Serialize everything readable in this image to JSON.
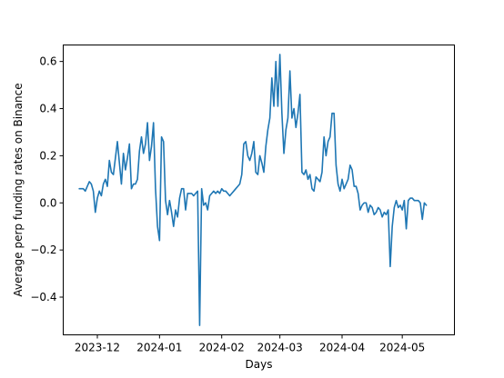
{
  "chart_data": {
    "type": "line",
    "title": "",
    "xlabel": "Days",
    "ylabel": "Average perp funding rates on Binance",
    "x_range": [
      "2023-11-14",
      "2024-05-27"
    ],
    "ylim": [
      -0.56,
      0.67
    ],
    "grid": false,
    "legend": null,
    "x_ticks": [
      {
        "date": "2023-12-01",
        "label": "2023-12"
      },
      {
        "date": "2024-01-01",
        "label": "2024-01"
      },
      {
        "date": "2024-02-01",
        "label": "2024-02"
      },
      {
        "date": "2024-03-01",
        "label": "2024-03"
      },
      {
        "date": "2024-04-01",
        "label": "2024-04"
      },
      {
        "date": "2024-05-01",
        "label": "2024-05"
      }
    ],
    "y_ticks": [
      {
        "value": 0.6,
        "label": "0.6"
      },
      {
        "value": 0.4,
        "label": "0.4"
      },
      {
        "value": 0.2,
        "label": "0.2"
      },
      {
        "value": 0.0,
        "label": "0.0"
      },
      {
        "value": -0.2,
        "label": "−0.2"
      },
      {
        "value": -0.4,
        "label": "−0.4"
      }
    ],
    "series": [
      {
        "color": "#1f77b4",
        "points": [
          [
            "2023-11-22",
            0.06
          ],
          [
            "2023-11-23",
            0.06
          ],
          [
            "2023-11-24",
            0.06
          ],
          [
            "2023-11-25",
            0.05
          ],
          [
            "2023-11-26",
            0.07
          ],
          [
            "2023-11-27",
            0.09
          ],
          [
            "2023-11-28",
            0.08
          ],
          [
            "2023-11-29",
            0.05
          ],
          [
            "2023-11-30",
            -0.04
          ],
          [
            "2023-12-01",
            0.02
          ],
          [
            "2023-12-02",
            0.05
          ],
          [
            "2023-12-03",
            0.03
          ],
          [
            "2023-12-04",
            0.08
          ],
          [
            "2023-12-05",
            0.1
          ],
          [
            "2023-12-06",
            0.07
          ],
          [
            "2023-12-07",
            0.18
          ],
          [
            "2023-12-08",
            0.13
          ],
          [
            "2023-12-09",
            0.12
          ],
          [
            "2023-12-10",
            0.19
          ],
          [
            "2023-12-11",
            0.26
          ],
          [
            "2023-12-12",
            0.17
          ],
          [
            "2023-12-13",
            0.08
          ],
          [
            "2023-12-14",
            0.21
          ],
          [
            "2023-12-15",
            0.14
          ],
          [
            "2023-12-16",
            0.19
          ],
          [
            "2023-12-17",
            0.25
          ],
          [
            "2023-12-18",
            0.06
          ],
          [
            "2023-12-19",
            0.08
          ],
          [
            "2023-12-20",
            0.08
          ],
          [
            "2023-12-21",
            0.1
          ],
          [
            "2023-12-22",
            0.22
          ],
          [
            "2023-12-23",
            0.28
          ],
          [
            "2023-12-24",
            0.21
          ],
          [
            "2023-12-25",
            0.25
          ],
          [
            "2023-12-26",
            0.34
          ],
          [
            "2023-12-27",
            0.18
          ],
          [
            "2023-12-28",
            0.24
          ],
          [
            "2023-12-29",
            0.34
          ],
          [
            "2023-12-30",
            0.06
          ],
          [
            "2023-12-31",
            -0.1
          ],
          [
            "2024-01-01",
            -0.16
          ],
          [
            "2024-01-02",
            0.28
          ],
          [
            "2024-01-03",
            0.26
          ],
          [
            "2024-01-04",
            0.01
          ],
          [
            "2024-01-05",
            -0.05
          ],
          [
            "2024-01-06",
            0.01
          ],
          [
            "2024-01-07",
            -0.04
          ],
          [
            "2024-01-08",
            -0.1
          ],
          [
            "2024-01-09",
            -0.03
          ],
          [
            "2024-01-10",
            -0.06
          ],
          [
            "2024-01-11",
            0.02
          ],
          [
            "2024-01-12",
            0.06
          ],
          [
            "2024-01-13",
            0.06
          ],
          [
            "2024-01-14",
            -0.03
          ],
          [
            "2024-01-15",
            0.04
          ],
          [
            "2024-01-16",
            0.04
          ],
          [
            "2024-01-17",
            0.04
          ],
          [
            "2024-01-18",
            0.03
          ],
          [
            "2024-01-19",
            0.04
          ],
          [
            "2024-01-20",
            0.05
          ],
          [
            "2024-01-21",
            -0.52
          ],
          [
            "2024-01-22",
            0.06
          ],
          [
            "2024-01-23",
            -0.01
          ],
          [
            "2024-01-24",
            0.0
          ],
          [
            "2024-01-25",
            -0.03
          ],
          [
            "2024-01-26",
            0.03
          ],
          [
            "2024-01-27",
            0.04
          ],
          [
            "2024-01-28",
            0.05
          ],
          [
            "2024-01-29",
            0.04
          ],
          [
            "2024-01-30",
            0.05
          ],
          [
            "2024-01-31",
            0.04
          ],
          [
            "2024-02-01",
            0.06
          ],
          [
            "2024-02-02",
            0.05
          ],
          [
            "2024-02-03",
            0.05
          ],
          [
            "2024-02-04",
            0.04
          ],
          [
            "2024-02-05",
            0.03
          ],
          [
            "2024-02-06",
            0.04
          ],
          [
            "2024-02-07",
            0.05
          ],
          [
            "2024-02-08",
            0.06
          ],
          [
            "2024-02-09",
            0.07
          ],
          [
            "2024-02-10",
            0.08
          ],
          [
            "2024-02-11",
            0.12
          ],
          [
            "2024-02-12",
            0.25
          ],
          [
            "2024-02-13",
            0.26
          ],
          [
            "2024-02-14",
            0.2
          ],
          [
            "2024-02-15",
            0.18
          ],
          [
            "2024-02-16",
            0.21
          ],
          [
            "2024-02-17",
            0.26
          ],
          [
            "2024-02-18",
            0.13
          ],
          [
            "2024-02-19",
            0.12
          ],
          [
            "2024-02-20",
            0.2
          ],
          [
            "2024-02-21",
            0.17
          ],
          [
            "2024-02-22",
            0.13
          ],
          [
            "2024-02-23",
            0.24
          ],
          [
            "2024-02-24",
            0.31
          ],
          [
            "2024-02-25",
            0.36
          ],
          [
            "2024-02-26",
            0.53
          ],
          [
            "2024-02-27",
            0.41
          ],
          [
            "2024-02-28",
            0.6
          ],
          [
            "2024-02-29",
            0.41
          ],
          [
            "2024-03-01",
            0.63
          ],
          [
            "2024-03-02",
            0.38
          ],
          [
            "2024-03-03",
            0.21
          ],
          [
            "2024-03-04",
            0.31
          ],
          [
            "2024-03-05",
            0.36
          ],
          [
            "2024-03-06",
            0.56
          ],
          [
            "2024-03-07",
            0.36
          ],
          [
            "2024-03-08",
            0.4
          ],
          [
            "2024-03-09",
            0.32
          ],
          [
            "2024-03-10",
            0.38
          ],
          [
            "2024-03-11",
            0.46
          ],
          [
            "2024-03-12",
            0.13
          ],
          [
            "2024-03-13",
            0.12
          ],
          [
            "2024-03-14",
            0.14
          ],
          [
            "2024-03-15",
            0.1
          ],
          [
            "2024-03-16",
            0.12
          ],
          [
            "2024-03-17",
            0.06
          ],
          [
            "2024-03-18",
            0.05
          ],
          [
            "2024-03-19",
            0.11
          ],
          [
            "2024-03-20",
            0.1
          ],
          [
            "2024-03-21",
            0.09
          ],
          [
            "2024-03-22",
            0.13
          ],
          [
            "2024-03-23",
            0.28
          ],
          [
            "2024-03-24",
            0.2
          ],
          [
            "2024-03-25",
            0.26
          ],
          [
            "2024-03-26",
            0.28
          ],
          [
            "2024-03-27",
            0.38
          ],
          [
            "2024-03-28",
            0.38
          ],
          [
            "2024-03-29",
            0.16
          ],
          [
            "2024-03-30",
            0.08
          ],
          [
            "2024-03-31",
            0.05
          ],
          [
            "2024-04-01",
            0.1
          ],
          [
            "2024-04-02",
            0.06
          ],
          [
            "2024-04-03",
            0.08
          ],
          [
            "2024-04-04",
            0.1
          ],
          [
            "2024-04-05",
            0.16
          ],
          [
            "2024-04-06",
            0.14
          ],
          [
            "2024-04-07",
            0.07
          ],
          [
            "2024-04-08",
            0.07
          ],
          [
            "2024-04-09",
            0.04
          ],
          [
            "2024-04-10",
            -0.03
          ],
          [
            "2024-04-11",
            -0.01
          ],
          [
            "2024-04-12",
            -0.0
          ],
          [
            "2024-04-13",
            -0.0
          ],
          [
            "2024-04-14",
            -0.04
          ],
          [
            "2024-04-15",
            -0.01
          ],
          [
            "2024-04-16",
            -0.02
          ],
          [
            "2024-04-17",
            -0.05
          ],
          [
            "2024-04-18",
            -0.04
          ],
          [
            "2024-04-19",
            -0.02
          ],
          [
            "2024-04-20",
            -0.03
          ],
          [
            "2024-04-21",
            -0.06
          ],
          [
            "2024-04-22",
            -0.04
          ],
          [
            "2024-04-23",
            -0.05
          ],
          [
            "2024-04-24",
            -0.03
          ],
          [
            "2024-04-25",
            -0.27
          ],
          [
            "2024-04-26",
            -0.1
          ],
          [
            "2024-04-27",
            -0.02
          ],
          [
            "2024-04-28",
            0.01
          ],
          [
            "2024-04-29",
            -0.02
          ],
          [
            "2024-04-30",
            -0.01
          ],
          [
            "2024-05-01",
            -0.03
          ],
          [
            "2024-05-02",
            0.01
          ],
          [
            "2024-05-03",
            -0.11
          ],
          [
            "2024-05-04",
            0.01
          ],
          [
            "2024-05-05",
            0.02
          ],
          [
            "2024-05-06",
            0.02
          ],
          [
            "2024-05-07",
            0.01
          ],
          [
            "2024-05-08",
            0.01
          ],
          [
            "2024-05-09",
            0.01
          ],
          [
            "2024-05-10",
            0.0
          ],
          [
            "2024-05-11",
            -0.07
          ],
          [
            "2024-05-12",
            0.0
          ],
          [
            "2024-05-13",
            -0.01
          ]
        ]
      }
    ]
  }
}
